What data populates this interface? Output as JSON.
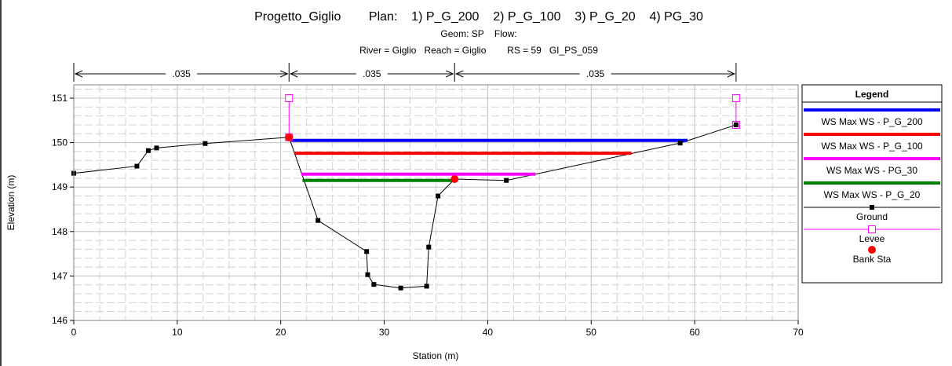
{
  "header": {
    "line1": "Progetto_Giglio        Plan:    1) P_G_200    2) P_G_100    3) P_G_20    4) PG_30",
    "line2": "Geom: SP    Flow:",
    "line3": "River = Giglio   Reach = Giglio        RS = 59   GI_PS_059"
  },
  "chart_data": {
    "type": "line",
    "xlabel": "Station (m)",
    "ylabel": "Elevation (m)",
    "xlim": [
      0,
      70
    ],
    "ylim": [
      146,
      151.3
    ],
    "x_ticks": [
      0,
      10,
      20,
      30,
      40,
      50,
      60,
      70
    ],
    "y_ticks": [
      146,
      147,
      148,
      149,
      150,
      151
    ],
    "grid": true,
    "manning": [
      {
        "label": ".035",
        "from": 0,
        "to": 20.8
      },
      {
        "label": ".035",
        "from": 20.8,
        "to": 36.8
      },
      {
        "label": ".035",
        "from": 36.8,
        "to": 64.0
      }
    ],
    "ground": [
      [
        0,
        149.31
      ],
      [
        6.1,
        149.47
      ],
      [
        7.2,
        149.82
      ],
      [
        8.0,
        149.88
      ],
      [
        12.7,
        149.98
      ],
      [
        20.8,
        150.12
      ],
      [
        23.6,
        148.25
      ],
      [
        28.3,
        147.55
      ],
      [
        28.4,
        147.03
      ],
      [
        29.0,
        146.81
      ],
      [
        31.6,
        146.73
      ],
      [
        34.1,
        146.77
      ],
      [
        34.3,
        147.65
      ],
      [
        35.2,
        148.8
      ],
      [
        36.8,
        149.18
      ],
      [
        41.8,
        149.15
      ],
      [
        58.6,
        149.99
      ],
      [
        64.0,
        150.4
      ]
    ],
    "water_surfaces": [
      {
        "name": "WS Max WS - P_G_200",
        "color": "#0000ff",
        "from": 21.0,
        "to": 59.3,
        "elev": 150.05
      },
      {
        "name": "WS Max WS - P_G_100",
        "color": "#ff0000",
        "from": 21.3,
        "to": 53.9,
        "elev": 149.76
      },
      {
        "name": "WS Max WS - PG_30",
        "color": "#ff00ff",
        "from": 22.0,
        "to": 44.6,
        "elev": 149.29
      },
      {
        "name": "WS Max WS - P_G_20",
        "color": "#008000",
        "from": 22.1,
        "to": 36.8,
        "elev": 149.15
      }
    ],
    "levees": [
      {
        "x": 20.8,
        "bottom": 150.12,
        "top": 151.0
      },
      {
        "x": 64.0,
        "bottom": 150.4,
        "top": 151.0
      }
    ],
    "bank_stations": [
      [
        20.8,
        150.12
      ],
      [
        36.8,
        149.18
      ]
    ]
  },
  "legend": {
    "title": "Legend",
    "ground_label": "Ground",
    "levee_label": "Levee",
    "bank_label": "Bank Sta",
    "ground_color": "#000000",
    "levee_color": "#ff00ff",
    "bank_color": "#ff0000"
  }
}
